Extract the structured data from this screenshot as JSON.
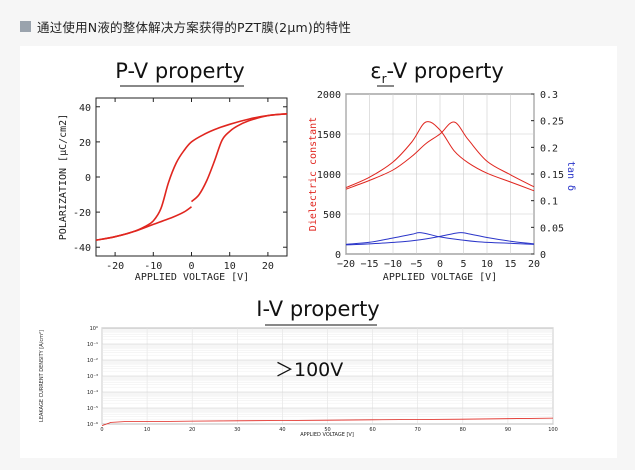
{
  "header": {
    "text": "通过使用N液的整体解决方案获得的PZT膜(2μm)的特性"
  },
  "chart_data": [
    {
      "type": "line",
      "title": "P-V property",
      "xlabel": "APPLIED VOLTAGE [V]",
      "ylabel": "POLARIZATION [μC/cm2]",
      "xlim": [
        -25,
        25
      ],
      "ylim": [
        -45,
        45
      ],
      "xticks": [
        "-20",
        "-10",
        "0",
        "10",
        "20"
      ],
      "yticks": [
        "-40",
        "-20",
        "0",
        "20",
        "40"
      ],
      "color": "#e0261f",
      "series": [
        {
          "x": [
            -25,
            -20,
            -15,
            -12,
            -10,
            -8,
            -6,
            -4,
            -2,
            0,
            3,
            6,
            10,
            15,
            20,
            25
          ],
          "y": [
            -36,
            -34,
            -31,
            -28,
            -25,
            -18,
            -3,
            8,
            15,
            20,
            24,
            27,
            30,
            33,
            35,
            36
          ]
        },
        {
          "x": [
            25,
            20,
            15,
            12,
            10,
            8,
            6,
            4,
            2,
            0
          ],
          "y": [
            36,
            35,
            32,
            29,
            26,
            21,
            9,
            -2,
            -10,
            -14
          ]
        },
        {
          "x": [
            0,
            -2,
            -5,
            -10,
            -15,
            -20,
            -25
          ],
          "y": [
            -17,
            -20,
            -23,
            -27,
            -31,
            -34,
            -36
          ]
        }
      ]
    },
    {
      "type": "line",
      "title": "εr-V property",
      "title_sub": "r",
      "xlabel": "APPLIED VOLTAGE [V]",
      "ylabel_left": "Dielectric constant",
      "ylabel_right": "tan δ",
      "xlim": [
        -20,
        20
      ],
      "ylim_left": [
        0,
        2000
      ],
      "ylim_right": [
        0,
        0.3
      ],
      "xticks": [
        "-20",
        "-15",
        "-10",
        "-5",
        "0",
        "5",
        "10",
        "15",
        "20"
      ],
      "yticks_left": [
        "0",
        "500",
        "1000",
        "1500",
        "2000"
      ],
      "yticks_right": [
        "0",
        "0.05",
        "0.1",
        "0.15",
        "0.2",
        "0.25",
        "0.3"
      ],
      "grid": true,
      "dielectric_color": "#e0261f",
      "loss_color": "#2a35c9",
      "series": [
        {
          "axis": "left",
          "x": [
            -20,
            -15,
            -10,
            -6,
            -3,
            0,
            3,
            6,
            10,
            15,
            20
          ],
          "y": [
            830,
            960,
            1150,
            1400,
            1650,
            1550,
            1290,
            1140,
            1010,
            900,
            790
          ]
        },
        {
          "axis": "left",
          "x": [
            -20,
            -15,
            -10,
            -6,
            -3,
            0,
            3,
            6,
            10,
            15,
            20
          ],
          "y": [
            810,
            920,
            1050,
            1220,
            1380,
            1500,
            1650,
            1430,
            1160,
            990,
            840
          ]
        },
        {
          "axis": "right",
          "x": [
            -20,
            -15,
            -10,
            -6,
            -4,
            0,
            4,
            8,
            15,
            20
          ],
          "y": [
            0.018,
            0.022,
            0.03,
            0.037,
            0.04,
            0.032,
            0.027,
            0.023,
            0.02,
            0.018
          ]
        },
        {
          "axis": "right",
          "x": [
            -20,
            -15,
            -8,
            -4,
            0,
            4,
            6,
            10,
            15,
            20
          ],
          "y": [
            0.017,
            0.019,
            0.023,
            0.027,
            0.033,
            0.04,
            0.038,
            0.031,
            0.024,
            0.019
          ]
        }
      ]
    },
    {
      "type": "line",
      "title": "I-V property",
      "annotation": "＞100V",
      "xlabel": "APPLIED VOLTAGE [V]",
      "ylabel": "LEAKAGE CURRENT DENSITY [A/cm²]",
      "xlim": [
        0,
        100
      ],
      "xticks": [
        "0",
        "10",
        "20",
        "30",
        "40",
        "50",
        "60",
        "70",
        "80",
        "90",
        "100"
      ],
      "yticks": [
        "10⁰",
        "10⁻¹",
        "10⁻²",
        "10⁻³",
        "10⁻⁴",
        "10⁻⁵",
        "10⁻⁶"
      ],
      "grid": true,
      "color": "#e0261f",
      "series": [
        {
          "x": [
            0,
            2,
            5,
            10,
            20,
            30,
            40,
            50,
            60,
            70,
            80,
            90,
            100
          ],
          "y": [
            -6.1,
            -5.9,
            -5.85,
            -5.85,
            -5.82,
            -5.8,
            -5.78,
            -5.76,
            -5.74,
            -5.72,
            -5.7,
            -5.67,
            -5.63
          ]
        }
      ]
    }
  ]
}
